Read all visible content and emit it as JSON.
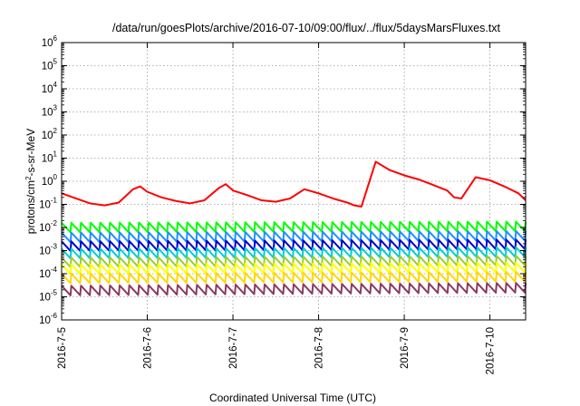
{
  "chart_data": {
    "type": "line",
    "title": "/data/run/goesPlots/archive/2016-07-10/09:00/flux/../flux/5daysMarsFluxes.txt",
    "xlabel": "Coordinated Universal Time (UTC)",
    "ylabel": "protons/cm2-s-sr-MeV",
    "ylabel_parts": {
      "pre": "protons/cm",
      "sup": "2",
      "post": "-s-sr-MeV"
    },
    "yscale": "log",
    "ylim": [
      1e-06,
      1000000.0
    ],
    "ytick_labels": [
      {
        "value": 1e-06,
        "base": "10",
        "exp": "-6"
      },
      {
        "value": 1e-05,
        "base": "10",
        "exp": "-5"
      },
      {
        "value": 0.0001,
        "base": "10",
        "exp": "-4"
      },
      {
        "value": 0.001,
        "base": "10",
        "exp": "-3"
      },
      {
        "value": 0.01,
        "base": "10",
        "exp": "-2"
      },
      {
        "value": 0.1,
        "base": "10",
        "exp": "-1"
      },
      {
        "value": 1,
        "base": "10",
        "exp": "0"
      },
      {
        "value": 10,
        "base": "10",
        "exp": "1"
      },
      {
        "value": 100,
        "base": "10",
        "exp": "2"
      },
      {
        "value": 1000,
        "base": "10",
        "exp": "3"
      },
      {
        "value": 10000,
        "base": "10",
        "exp": "4"
      },
      {
        "value": 100000,
        "base": "10",
        "exp": "5"
      },
      {
        "value": 1000000,
        "base": "10",
        "exp": "6"
      }
    ],
    "xlim": [
      "2016-07-05T00:00",
      "2016-07-10T10:00"
    ],
    "xtick_labels": [
      {
        "value": "2016-07-05T00:00",
        "label": "2016-7-5"
      },
      {
        "value": "2016-07-06T00:00",
        "label": "2016-7-6"
      },
      {
        "value": "2016-07-07T00:00",
        "label": "2016-7-7"
      },
      {
        "value": "2016-07-08T00:00",
        "label": "2016-7-8"
      },
      {
        "value": "2016-07-09T00:00",
        "label": "2016-7-9"
      },
      {
        "value": "2016-07-10T00:00",
        "label": "2016-7-10"
      }
    ],
    "grid": true,
    "legend": "none",
    "series": [
      {
        "color": "#ff0000",
        "x": [
          "2016-07-05T00:00",
          "2016-07-05T04:00",
          "2016-07-05T08:00",
          "2016-07-05T12:00",
          "2016-07-05T16:00",
          "2016-07-05T20:00",
          "2016-07-05T22:00",
          "2016-07-06T00:00",
          "2016-07-06T04:00",
          "2016-07-06T08:00",
          "2016-07-06T12:00",
          "2016-07-06T16:00",
          "2016-07-06T20:00",
          "2016-07-06T22:00",
          "2016-07-07T00:00",
          "2016-07-07T04:00",
          "2016-07-07T08:00",
          "2016-07-07T12:00",
          "2016-07-07T16:00",
          "2016-07-07T20:00",
          "2016-07-08T00:00",
          "2016-07-08T04:00",
          "2016-07-08T08:00",
          "2016-07-08T10:00",
          "2016-07-08T12:00",
          "2016-07-08T16:00",
          "2016-07-08T20:00",
          "2016-07-09T00:00",
          "2016-07-09T04:00",
          "2016-07-09T08:00",
          "2016-07-09T12:00",
          "2016-07-09T14:00",
          "2016-07-09T16:00",
          "2016-07-09T20:00",
          "2016-07-10T00:00",
          "2016-07-10T04:00",
          "2016-07-10T08:00",
          "2016-07-10T10:00"
        ],
        "y": [
          0.3,
          0.18,
          0.11,
          0.09,
          0.12,
          0.45,
          0.6,
          0.35,
          0.2,
          0.14,
          0.11,
          0.15,
          0.5,
          0.75,
          0.4,
          0.25,
          0.15,
          0.13,
          0.18,
          0.45,
          0.3,
          0.18,
          0.12,
          0.09,
          0.08,
          7,
          3,
          1.8,
          1.2,
          0.7,
          0.4,
          0.2,
          0.18,
          1.5,
          1.1,
          0.6,
          0.3,
          0.15
        ]
      },
      {
        "color": "#00ff00",
        "x": [
          "2016-07-05T00:00",
          "2016-07-10T10:00"
        ],
        "y": [
          0.016,
          0.018
        ]
      },
      {
        "color": "#1e90ff",
        "x": [
          "2016-07-05T00:00",
          "2016-07-10T10:00"
        ],
        "y": [
          0.006,
          0.007
        ]
      },
      {
        "color": "#0000cd",
        "x": [
          "2016-07-05T00:00",
          "2016-07-10T10:00"
        ],
        "y": [
          0.0025,
          0.003
        ]
      },
      {
        "color": "#00ced1",
        "x": [
          "2016-07-05T00:00",
          "2016-07-10T10:00"
        ],
        "y": [
          0.0012,
          0.0014
        ]
      },
      {
        "color": "#9acd32",
        "x": [
          "2016-07-05T00:00",
          "2016-07-10T10:00"
        ],
        "y": [
          0.0005,
          0.0006
        ]
      },
      {
        "color": "#ffff00",
        "x": [
          "2016-07-05T00:00",
          "2016-07-10T10:00"
        ],
        "y": [
          0.00025,
          0.0003
        ]
      },
      {
        "color": "#ffd700",
        "x": [
          "2016-07-05T00:00",
          "2016-07-10T10:00"
        ],
        "y": [
          0.0001,
          0.00012
        ]
      },
      {
        "color": "#8b3a62",
        "x": [
          "2016-07-05T00:00",
          "2016-07-10T10:00"
        ],
        "y": [
          3e-05,
          4e-05
        ]
      }
    ]
  }
}
